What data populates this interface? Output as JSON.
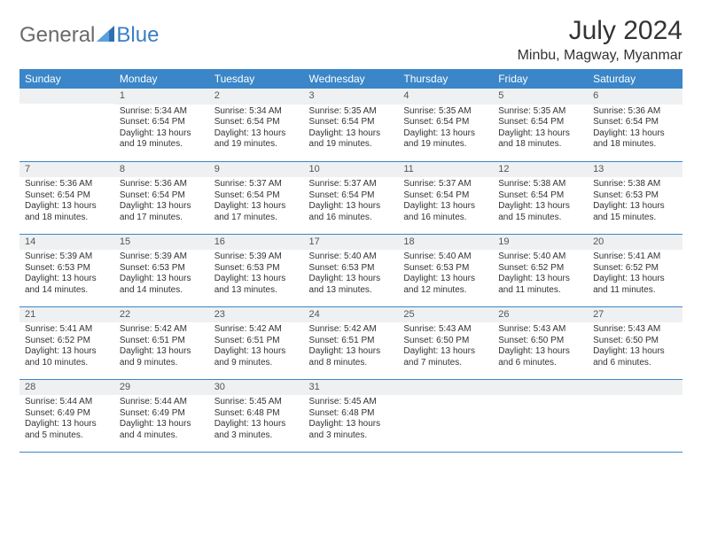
{
  "logo": {
    "text1": "General",
    "text2": "Blue"
  },
  "title": "July 2024",
  "location": "Minbu, Magway, Myanmar",
  "colors": {
    "header_bg": "#3a86c8",
    "header_fg": "#ffffff",
    "daynum_bg": "#eef0f1",
    "border": "#3a86c8",
    "logo_gray": "#6a6a6a",
    "logo_blue": "#3a7fc4"
  },
  "weekdays": [
    "Sunday",
    "Monday",
    "Tuesday",
    "Wednesday",
    "Thursday",
    "Friday",
    "Saturday"
  ],
  "weeks": [
    [
      {
        "day": "",
        "sunrise": "",
        "sunset": "",
        "daylight": ""
      },
      {
        "day": "1",
        "sunrise": "Sunrise: 5:34 AM",
        "sunset": "Sunset: 6:54 PM",
        "daylight": "Daylight: 13 hours and 19 minutes."
      },
      {
        "day": "2",
        "sunrise": "Sunrise: 5:34 AM",
        "sunset": "Sunset: 6:54 PM",
        "daylight": "Daylight: 13 hours and 19 minutes."
      },
      {
        "day": "3",
        "sunrise": "Sunrise: 5:35 AM",
        "sunset": "Sunset: 6:54 PM",
        "daylight": "Daylight: 13 hours and 19 minutes."
      },
      {
        "day": "4",
        "sunrise": "Sunrise: 5:35 AM",
        "sunset": "Sunset: 6:54 PM",
        "daylight": "Daylight: 13 hours and 19 minutes."
      },
      {
        "day": "5",
        "sunrise": "Sunrise: 5:35 AM",
        "sunset": "Sunset: 6:54 PM",
        "daylight": "Daylight: 13 hours and 18 minutes."
      },
      {
        "day": "6",
        "sunrise": "Sunrise: 5:36 AM",
        "sunset": "Sunset: 6:54 PM",
        "daylight": "Daylight: 13 hours and 18 minutes."
      }
    ],
    [
      {
        "day": "7",
        "sunrise": "Sunrise: 5:36 AM",
        "sunset": "Sunset: 6:54 PM",
        "daylight": "Daylight: 13 hours and 18 minutes."
      },
      {
        "day": "8",
        "sunrise": "Sunrise: 5:36 AM",
        "sunset": "Sunset: 6:54 PM",
        "daylight": "Daylight: 13 hours and 17 minutes."
      },
      {
        "day": "9",
        "sunrise": "Sunrise: 5:37 AM",
        "sunset": "Sunset: 6:54 PM",
        "daylight": "Daylight: 13 hours and 17 minutes."
      },
      {
        "day": "10",
        "sunrise": "Sunrise: 5:37 AM",
        "sunset": "Sunset: 6:54 PM",
        "daylight": "Daylight: 13 hours and 16 minutes."
      },
      {
        "day": "11",
        "sunrise": "Sunrise: 5:37 AM",
        "sunset": "Sunset: 6:54 PM",
        "daylight": "Daylight: 13 hours and 16 minutes."
      },
      {
        "day": "12",
        "sunrise": "Sunrise: 5:38 AM",
        "sunset": "Sunset: 6:54 PM",
        "daylight": "Daylight: 13 hours and 15 minutes."
      },
      {
        "day": "13",
        "sunrise": "Sunrise: 5:38 AM",
        "sunset": "Sunset: 6:53 PM",
        "daylight": "Daylight: 13 hours and 15 minutes."
      }
    ],
    [
      {
        "day": "14",
        "sunrise": "Sunrise: 5:39 AM",
        "sunset": "Sunset: 6:53 PM",
        "daylight": "Daylight: 13 hours and 14 minutes."
      },
      {
        "day": "15",
        "sunrise": "Sunrise: 5:39 AM",
        "sunset": "Sunset: 6:53 PM",
        "daylight": "Daylight: 13 hours and 14 minutes."
      },
      {
        "day": "16",
        "sunrise": "Sunrise: 5:39 AM",
        "sunset": "Sunset: 6:53 PM",
        "daylight": "Daylight: 13 hours and 13 minutes."
      },
      {
        "day": "17",
        "sunrise": "Sunrise: 5:40 AM",
        "sunset": "Sunset: 6:53 PM",
        "daylight": "Daylight: 13 hours and 13 minutes."
      },
      {
        "day": "18",
        "sunrise": "Sunrise: 5:40 AM",
        "sunset": "Sunset: 6:53 PM",
        "daylight": "Daylight: 13 hours and 12 minutes."
      },
      {
        "day": "19",
        "sunrise": "Sunrise: 5:40 AM",
        "sunset": "Sunset: 6:52 PM",
        "daylight": "Daylight: 13 hours and 11 minutes."
      },
      {
        "day": "20",
        "sunrise": "Sunrise: 5:41 AM",
        "sunset": "Sunset: 6:52 PM",
        "daylight": "Daylight: 13 hours and 11 minutes."
      }
    ],
    [
      {
        "day": "21",
        "sunrise": "Sunrise: 5:41 AM",
        "sunset": "Sunset: 6:52 PM",
        "daylight": "Daylight: 13 hours and 10 minutes."
      },
      {
        "day": "22",
        "sunrise": "Sunrise: 5:42 AM",
        "sunset": "Sunset: 6:51 PM",
        "daylight": "Daylight: 13 hours and 9 minutes."
      },
      {
        "day": "23",
        "sunrise": "Sunrise: 5:42 AM",
        "sunset": "Sunset: 6:51 PM",
        "daylight": "Daylight: 13 hours and 9 minutes."
      },
      {
        "day": "24",
        "sunrise": "Sunrise: 5:42 AM",
        "sunset": "Sunset: 6:51 PM",
        "daylight": "Daylight: 13 hours and 8 minutes."
      },
      {
        "day": "25",
        "sunrise": "Sunrise: 5:43 AM",
        "sunset": "Sunset: 6:50 PM",
        "daylight": "Daylight: 13 hours and 7 minutes."
      },
      {
        "day": "26",
        "sunrise": "Sunrise: 5:43 AM",
        "sunset": "Sunset: 6:50 PM",
        "daylight": "Daylight: 13 hours and 6 minutes."
      },
      {
        "day": "27",
        "sunrise": "Sunrise: 5:43 AM",
        "sunset": "Sunset: 6:50 PM",
        "daylight": "Daylight: 13 hours and 6 minutes."
      }
    ],
    [
      {
        "day": "28",
        "sunrise": "Sunrise: 5:44 AM",
        "sunset": "Sunset: 6:49 PM",
        "daylight": "Daylight: 13 hours and 5 minutes."
      },
      {
        "day": "29",
        "sunrise": "Sunrise: 5:44 AM",
        "sunset": "Sunset: 6:49 PM",
        "daylight": "Daylight: 13 hours and 4 minutes."
      },
      {
        "day": "30",
        "sunrise": "Sunrise: 5:45 AM",
        "sunset": "Sunset: 6:48 PM",
        "daylight": "Daylight: 13 hours and 3 minutes."
      },
      {
        "day": "31",
        "sunrise": "Sunrise: 5:45 AM",
        "sunset": "Sunset: 6:48 PM",
        "daylight": "Daylight: 13 hours and 3 minutes."
      },
      {
        "day": "",
        "sunrise": "",
        "sunset": "",
        "daylight": ""
      },
      {
        "day": "",
        "sunrise": "",
        "sunset": "",
        "daylight": ""
      },
      {
        "day": "",
        "sunrise": "",
        "sunset": "",
        "daylight": ""
      }
    ]
  ]
}
